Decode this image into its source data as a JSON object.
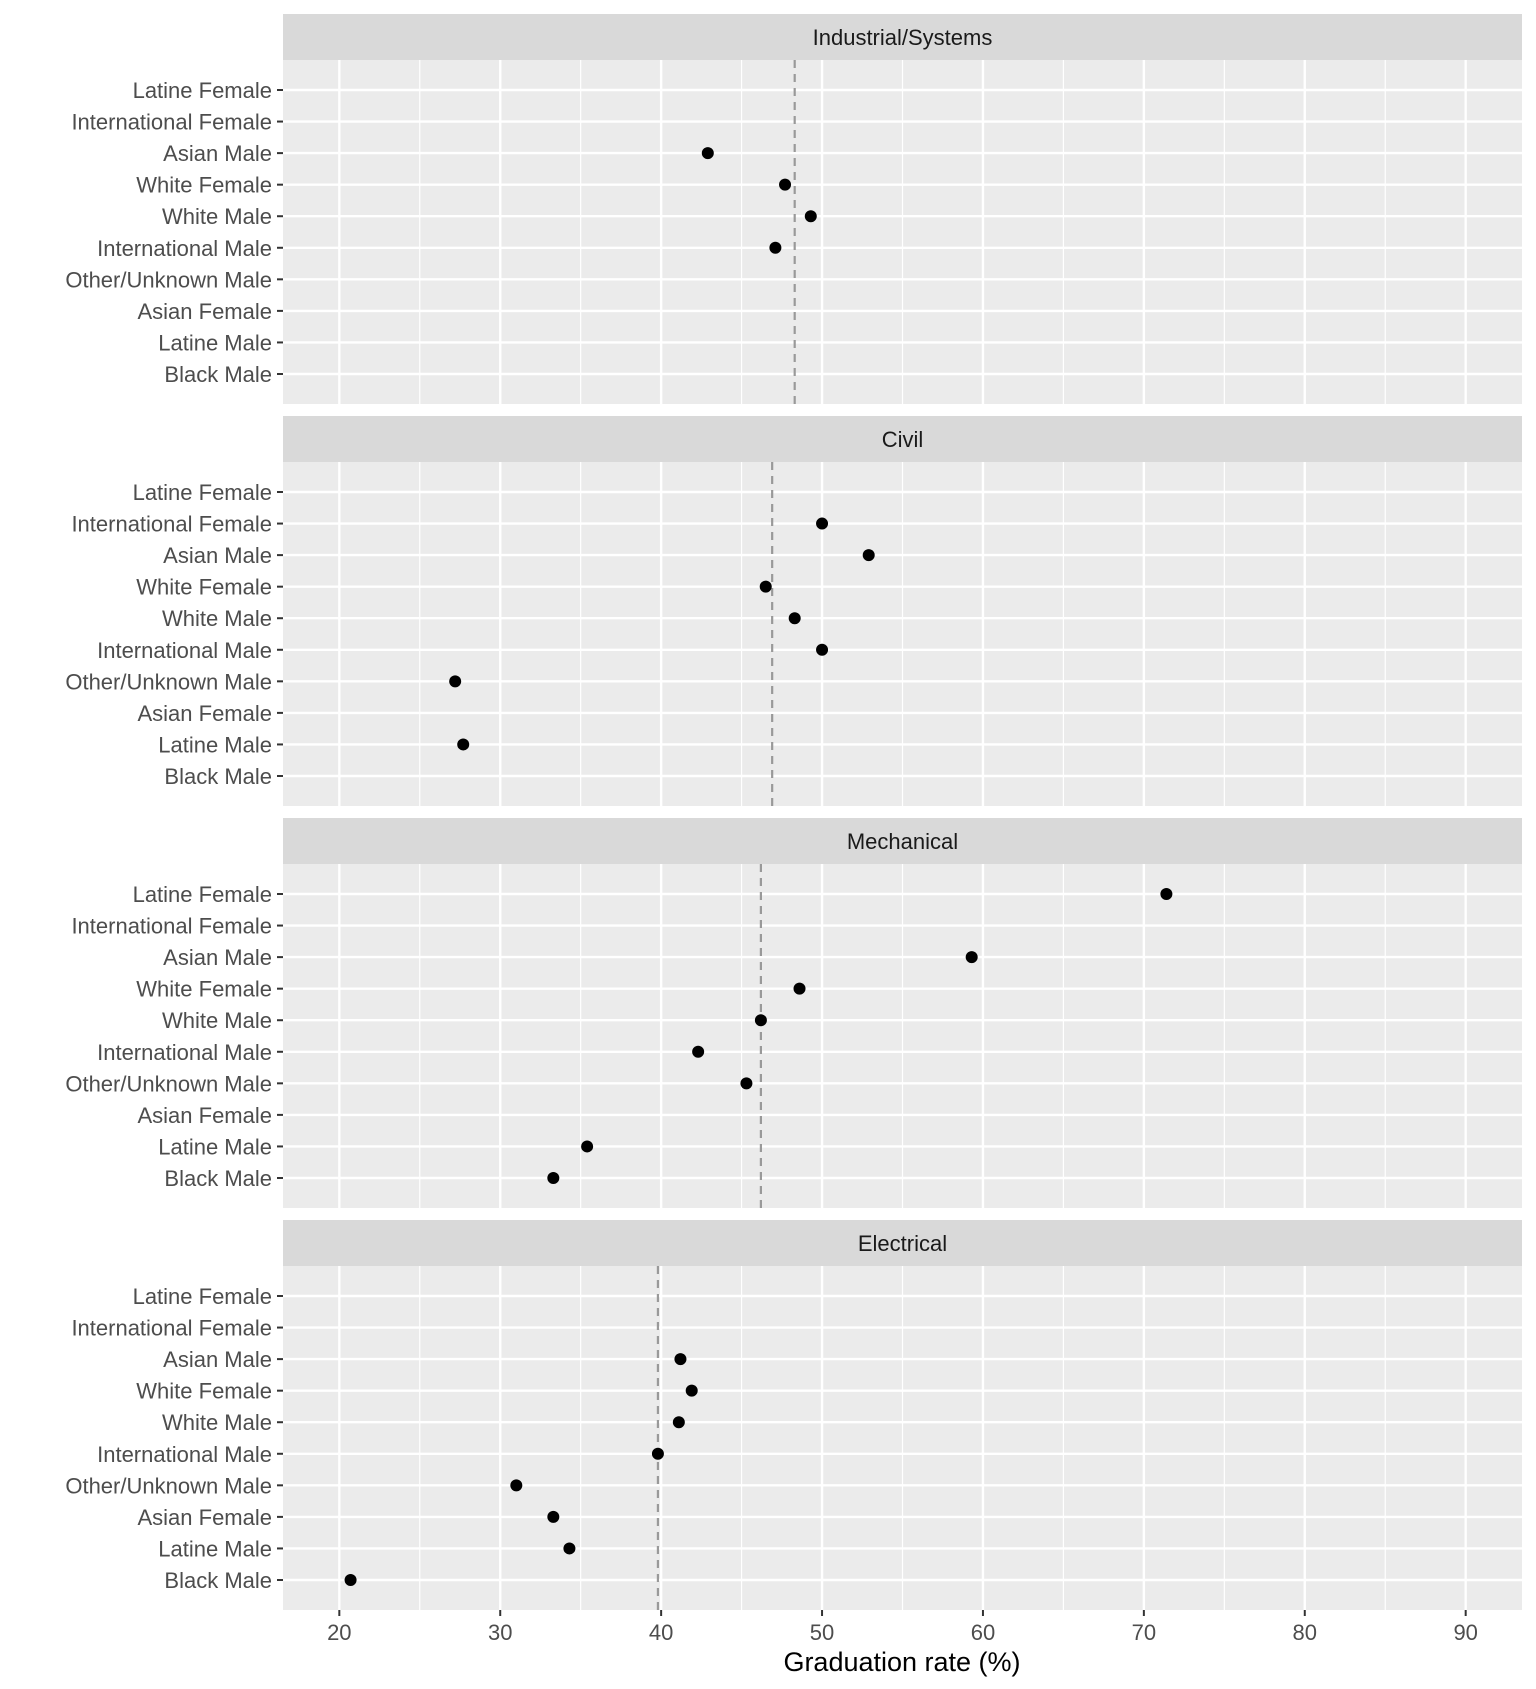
{
  "chart_data": {
    "type": "scatter",
    "xlabel": "Graduation rate (%)",
    "ylabel": "",
    "xlim": [
      16.5,
      93.5
    ],
    "xticks": [
      20,
      30,
      40,
      50,
      60,
      70,
      80,
      90
    ],
    "grid": true,
    "categories": [
      "Latine Female",
      "International Female",
      "Asian Male",
      "White Female",
      "White Male",
      "International Male",
      "Other/Unknown Male",
      "Asian Female",
      "Latine Male",
      "Black Male"
    ],
    "panels": [
      {
        "title": "Industrial/Systems",
        "reference_line": 48.3,
        "values": [
          null,
          null,
          42.9,
          47.7,
          49.3,
          47.1,
          null,
          null,
          null,
          null
        ]
      },
      {
        "title": "Civil",
        "reference_line": 46.9,
        "values": [
          null,
          50.0,
          52.9,
          46.5,
          48.3,
          50.0,
          27.2,
          null,
          27.7,
          null
        ]
      },
      {
        "title": "Mechanical",
        "reference_line": 46.2,
        "values": [
          71.4,
          null,
          59.3,
          48.6,
          46.2,
          42.3,
          45.3,
          null,
          35.4,
          33.3
        ]
      },
      {
        "title": "Electrical",
        "reference_line": 39.8,
        "values": [
          null,
          null,
          41.2,
          41.9,
          41.1,
          39.8,
          31.0,
          33.3,
          34.3,
          20.7
        ]
      }
    ]
  }
}
